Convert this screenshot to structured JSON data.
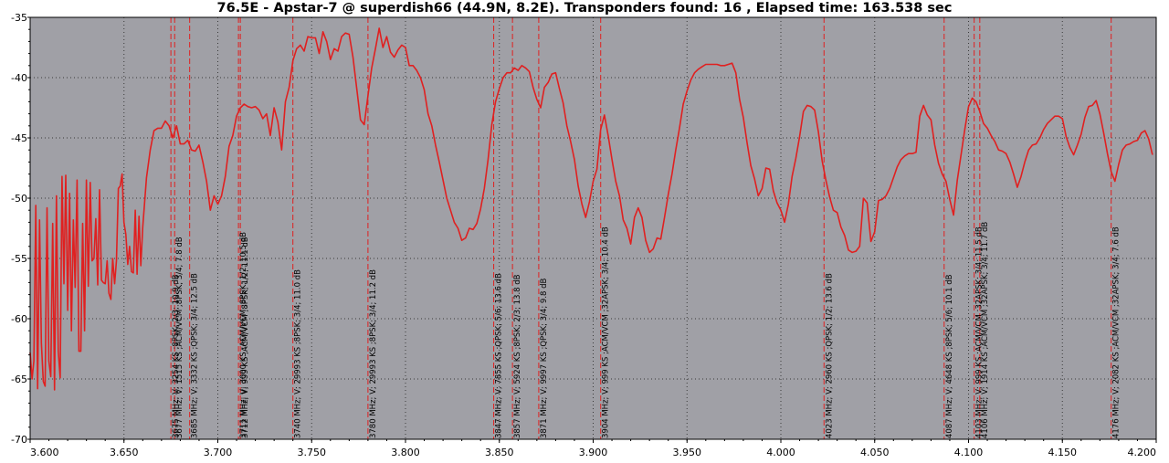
{
  "chart_data": {
    "type": "line",
    "title": "76.5E - Apstar-7 @ superdish66 (44.9N, 8.2E). Transponders found: 16 , Elapsed time: 163.538 sec",
    "xlabel": "",
    "ylabel": "",
    "xlim": [
      3.6,
      4.2
    ],
    "ylim": [
      -70,
      -35
    ],
    "grid": true,
    "colors": {
      "line": "#e02020",
      "background": "#a0a0a6",
      "grid": "#3a3a3a",
      "marker": "#e02020"
    },
    "x_ticks": [
      "3.600",
      "3.650",
      "3.700",
      "3.750",
      "3.800",
      "3.850",
      "3.900",
      "3.950",
      "4.000",
      "4.050",
      "4.100",
      "4.150",
      "4.200"
    ],
    "y_ticks": [
      "-35",
      "-40",
      "-45",
      "-50",
      "-55",
      "-60",
      "-65",
      "-70"
    ],
    "series": [
      {
        "x": [
          3.6,
          3.601,
          3.602,
          3.603,
          3.604,
          3.605,
          3.606,
          3.607,
          3.608,
          3.609,
          3.61,
          3.611,
          3.612,
          3.613,
          3.614,
          3.615,
          3.616,
          3.617,
          3.618,
          3.619,
          3.62,
          3.621,
          3.622,
          3.623,
          3.624,
          3.625,
          3.626,
          3.627,
          3.628,
          3.629,
          3.63,
          3.631,
          3.632,
          3.633,
          3.634,
          3.635,
          3.636,
          3.637,
          3.638,
          3.639,
          3.64,
          3.641,
          3.642,
          3.643,
          3.644,
          3.645,
          3.646,
          3.647,
          3.648,
          3.649,
          3.65,
          3.651,
          3.652,
          3.653,
          3.654,
          3.655,
          3.656,
          3.657,
          3.658,
          3.659,
          3.66,
          3.662,
          3.664,
          3.666,
          3.668,
          3.67,
          3.672,
          3.674,
          3.676,
          3.678,
          3.68,
          3.682,
          3.684,
          3.686,
          3.688,
          3.69,
          3.692,
          3.694,
          3.696,
          3.698,
          3.7,
          3.702,
          3.704,
          3.706,
          3.708,
          3.71,
          3.712,
          3.714,
          3.716,
          3.718,
          3.72,
          3.722,
          3.724,
          3.726,
          3.728,
          3.73,
          3.732,
          3.734,
          3.736,
          3.738,
          3.74,
          3.742,
          3.744,
          3.746,
          3.748,
          3.75,
          3.752,
          3.754,
          3.756,
          3.758,
          3.76,
          3.762,
          3.764,
          3.766,
          3.768,
          3.77,
          3.772,
          3.774,
          3.776,
          3.778,
          3.78,
          3.782,
          3.784,
          3.786,
          3.788,
          3.79,
          3.792,
          3.794,
          3.796,
          3.798,
          3.8,
          3.802,
          3.804,
          3.806,
          3.808,
          3.81,
          3.812,
          3.814,
          3.816,
          3.818,
          3.82,
          3.822,
          3.824,
          3.826,
          3.828,
          3.83,
          3.832,
          3.834,
          3.836,
          3.838,
          3.84,
          3.842,
          3.844,
          3.846,
          3.848,
          3.85,
          3.852,
          3.854,
          3.856,
          3.858,
          3.86,
          3.862,
          3.864,
          3.866,
          3.868,
          3.87,
          3.872,
          3.874,
          3.876,
          3.878,
          3.88,
          3.882,
          3.884,
          3.886,
          3.888,
          3.89,
          3.892,
          3.894,
          3.896,
          3.898,
          3.9,
          3.902,
          3.904,
          3.906,
          3.908,
          3.91,
          3.912,
          3.914,
          3.916,
          3.918,
          3.92,
          3.922,
          3.924,
          3.926,
          3.928,
          3.93,
          3.932,
          3.934,
          3.936,
          3.938,
          3.94,
          3.942,
          3.944,
          3.946,
          3.948,
          3.95,
          3.952,
          3.954,
          3.956,
          3.958,
          3.96,
          3.962,
          3.964,
          3.966,
          3.968,
          3.97,
          3.972,
          3.974,
          3.976,
          3.978,
          3.98,
          3.982,
          3.984,
          3.986,
          3.988,
          3.99,
          3.992,
          3.994,
          3.996,
          3.998,
          4.0,
          4.002,
          4.004,
          4.006,
          4.008,
          4.01,
          4.012,
          4.014,
          4.016,
          4.018,
          4.02,
          4.022,
          4.024,
          4.026,
          4.028,
          4.03,
          4.032,
          4.034,
          4.036,
          4.038,
          4.04,
          4.042,
          4.044,
          4.046,
          4.048,
          4.05,
          4.052,
          4.054,
          4.056,
          4.058,
          4.06,
          4.062,
          4.064,
          4.066,
          4.068,
          4.07,
          4.072,
          4.074,
          4.076,
          4.078,
          4.08,
          4.082,
          4.084,
          4.086,
          4.088,
          4.09,
          4.092,
          4.094,
          4.096,
          4.098,
          4.1,
          4.102,
          4.104,
          4.106,
          4.108,
          4.11,
          4.112,
          4.114,
          4.116,
          4.118,
          4.12,
          4.122,
          4.124,
          4.126,
          4.128,
          4.13,
          4.132,
          4.134,
          4.136,
          4.138,
          4.14,
          4.142,
          4.144,
          4.146,
          4.148,
          4.15,
          4.152,
          4.154,
          4.156,
          4.158,
          4.16,
          4.162,
          4.164,
          4.166,
          4.168,
          4.17,
          4.172,
          4.174,
          4.176,
          4.178,
          4.18,
          4.182,
          4.184,
          4.186,
          4.188,
          4.19,
          4.192,
          4.194,
          4.196,
          4.198
        ],
        "y": [
          -62.8,
          -65.0,
          -63.5,
          -50.6,
          -65.8,
          -51.8,
          -62.0,
          -65.2,
          -65.6,
          -50.8,
          -63.5,
          -64.8,
          -52.1,
          -65.9,
          -49.8,
          -62.7,
          -64.9,
          -48.2,
          -57.1,
          -48.1,
          -59.3,
          -49.6,
          -61.0,
          -51.8,
          -57.4,
          -48.5,
          -62.7,
          -62.7,
          -52.1,
          -61.0,
          -48.5,
          -57.3,
          -48.7,
          -55.2,
          -55.0,
          -51.7,
          -57.2,
          -49.3,
          -56.8,
          -57.0,
          -57.1,
          -55.2,
          -57.9,
          -58.4,
          -55.0,
          -57.1,
          -55.2,
          -49.2,
          -49.0,
          -48.0,
          -52.0,
          -53.0,
          -55.5,
          -54.0,
          -56.1,
          -56.2,
          -51.0,
          -56.3,
          -51.5,
          -55.6,
          -52.4,
          -48.3,
          -46.0,
          -44.4,
          -44.2,
          -44.2,
          -43.6,
          -44.0,
          -45.0,
          -44.0,
          -45.5,
          -45.5,
          -45.2,
          -46.0,
          -46.1,
          -45.6,
          -47.0,
          -48.6,
          -51.0,
          -49.8,
          -50.5,
          -49.8,
          -48.2,
          -45.7,
          -44.8,
          -43.2,
          -42.5,
          -42.2,
          -42.4,
          -42.5,
          -42.4,
          -42.7,
          -43.4,
          -43.0,
          -44.8,
          -42.5,
          -43.7,
          -46.0,
          -42.0,
          -40.8,
          -38.6,
          -37.6,
          -37.3,
          -37.8,
          -36.6,
          -36.7,
          -36.7,
          -38.0,
          -36.2,
          -37.0,
          -38.5,
          -37.6,
          -37.8,
          -36.6,
          -36.3,
          -36.4,
          -38.3,
          -40.9,
          -43.5,
          -43.9,
          -41.5,
          -39.2,
          -37.6,
          -35.9,
          -37.5,
          -36.6,
          -37.9,
          -38.3,
          -37.7,
          -37.3,
          -37.5,
          -39.0,
          -39.0,
          -39.4,
          -40.0,
          -41.0,
          -43.0,
          -44.0,
          -45.6,
          -47.0,
          -48.5,
          -50.0,
          -51.0,
          -52.0,
          -52.5,
          -53.5,
          -53.3,
          -52.5,
          -52.6,
          -52.1,
          -50.9,
          -49.2,
          -46.8,
          -43.9,
          -42.0,
          -40.9,
          -40.0,
          -39.6,
          -39.6,
          -39.2,
          -39.4,
          -39.0,
          -39.2,
          -39.5,
          -40.8,
          -41.8,
          -42.5,
          -40.8,
          -40.4,
          -39.7,
          -39.6,
          -40.9,
          -42.1,
          -44.0,
          -45.3,
          -46.8,
          -49.0,
          -50.5,
          -51.6,
          -50.3,
          -48.6,
          -47.6,
          -44.3,
          -43.1,
          -44.8,
          -46.8,
          -48.6,
          -49.8,
          -51.8,
          -52.5,
          -53.8,
          -51.6,
          -50.8,
          -51.6,
          -53.5,
          -54.5,
          -54.2,
          -53.3,
          -53.4,
          -51.6,
          -49.7,
          -48.0,
          -46.0,
          -44.2,
          -42.2,
          -41.1,
          -40.2,
          -39.6,
          -39.3,
          -39.1,
          -38.9,
          -38.9,
          -38.9,
          -38.9,
          -39.0,
          -39.0,
          -38.9,
          -38.8,
          -39.6,
          -41.8,
          -43.3,
          -45.4,
          -47.3,
          -48.4,
          -49.8,
          -49.2,
          -47.5,
          -47.6,
          -49.4,
          -50.4,
          -51.0,
          -52.0,
          -50.5,
          -48.2,
          -46.7,
          -44.9,
          -42.8,
          -42.3,
          -42.4,
          -42.7,
          -44.5,
          -46.9,
          -48.5,
          -49.9,
          -51.0,
          -51.2,
          -52.4,
          -53.1,
          -54.3,
          -54.5,
          -54.4,
          -54.0,
          -50.0,
          -50.4,
          -53.6,
          -52.8,
          -50.2,
          -50.1,
          -49.8,
          -49.2,
          -48.3,
          -47.4,
          -46.8,
          -46.5,
          -46.3,
          -46.3,
          -46.2,
          -43.2,
          -42.3,
          -43.1,
          -43.5,
          -45.6,
          -47.1,
          -48.0,
          -48.6,
          -50.1,
          -51.4,
          -48.5,
          -46.4,
          -44.3,
          -42.4,
          -41.7,
          -42.0,
          -42.8,
          -43.8,
          -44.2,
          -44.8,
          -45.3,
          -46.0,
          -46.1,
          -46.3,
          -47.0,
          -48.0,
          -49.1,
          -48.2,
          -47.0,
          -46.0,
          -45.6,
          -45.5,
          -45.0,
          -44.3,
          -43.8,
          -43.5,
          -43.2,
          -43.2,
          -43.4,
          -44.9,
          -45.8,
          -46.4,
          -45.6,
          -44.7,
          -43.3,
          -42.4,
          -42.3,
          -41.9,
          -43.0,
          -44.6,
          -46.3,
          -47.8,
          -48.6,
          -47.2,
          -46.0,
          -45.6,
          -45.5,
          -45.3,
          -45.2,
          -44.6,
          -44.4,
          -45.1,
          -46.4
        ]
      }
    ],
    "transponders": [
      {
        "freq": 3.675,
        "label": "3675 MHz; V; 3254 KS ;8PSK; 2/3; 10.9 dB"
      },
      {
        "freq": 3.677,
        "label": "3677 MHz; V; 1515 KS ;ACM/VCM ;8PSK; 3/4; 7.8 dB"
      },
      {
        "freq": 3.685,
        "label": "3685 MHz; V; 3332 KS ;QPSK; 3/4; 12.5 dB"
      },
      {
        "freq": 3.711,
        "label": "3711 MHz; V; 3000 KS ;ACM/VCM ;8PSK; 1/2; 10.5 dB"
      },
      {
        "freq": 3.712,
        "label": "3712 MHz; V; 999 KS ;ACM/VCM ;8PSK; 1/2; 11.1 dB"
      },
      {
        "freq": 3.74,
        "label": "3740 MHz; V; 29993 KS ;8PSK; 3/4; 11.0 dB"
      },
      {
        "freq": 3.78,
        "label": "3780 MHz; V; 29993 KS ;8PSK; 3/4; 11.2 dB"
      },
      {
        "freq": 3.847,
        "label": "3847 MHz; V; 7855 KS ;QPSK; 5/6; 13.6 dB"
      },
      {
        "freq": 3.857,
        "label": "3857 MHz; V; 5924 KS ;8PSK; 2/3; 13.8 dB"
      },
      {
        "freq": 3.871,
        "label": "3871 MHz; V; 9997 KS ;QPSK; 3/4; 9.8 dB"
      },
      {
        "freq": 3.904,
        "label": "3904 MHz; V; 999 KS ;ACM/VCM ;32APSK; 3/4; 10.4 dB"
      },
      {
        "freq": 4.023,
        "label": "4023 MHz; V; 2960 KS ;QPSK; 1/2; 13.6 dB"
      },
      {
        "freq": 4.087,
        "label": "4087 MHz; V; 4648 KS ;8PSK; 5/6; 10.1 dB"
      },
      {
        "freq": 4.103,
        "label": "4103 MHz; V; 999 KS ;ACM/VCM ;32APSK; 3/4; 11.5 dB"
      },
      {
        "freq": 4.106,
        "label": "4106 MHz; V; 1914 KS ;ACM/VCM ;32APSK; 3/4; 11.7 dB"
      },
      {
        "freq": 4.176,
        "label": "4176 MHz; V; 2082 KS ;ACM/VCM ;32APSK; 3/4; 7.6 dB"
      }
    ]
  }
}
